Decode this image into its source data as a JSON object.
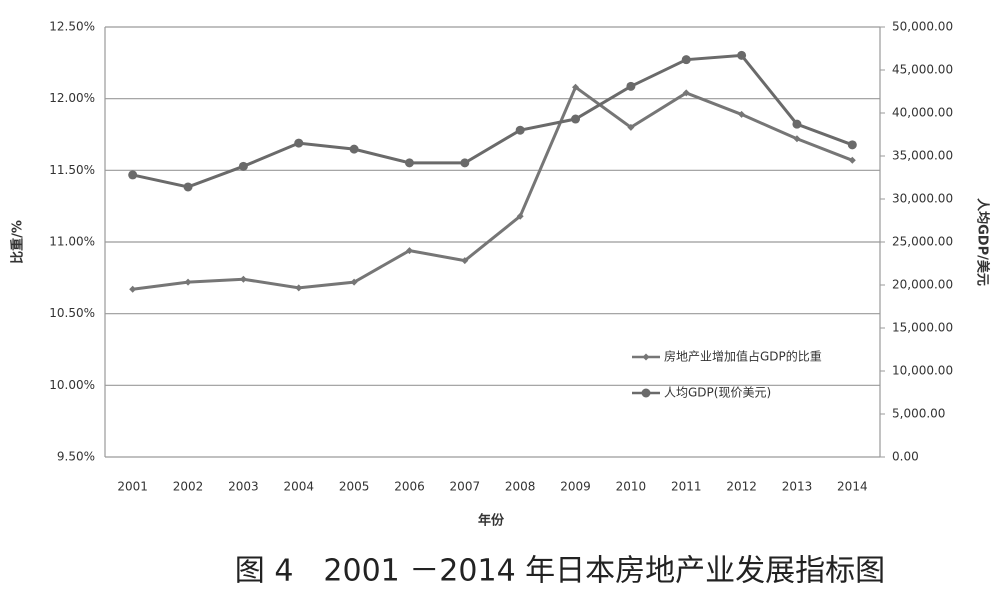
{
  "chart_data": {
    "type": "line",
    "caption": "图 4　2001 －2014 年日本房地产业发展指标图",
    "x_label": "年份",
    "y_label": "比重/%",
    "y2_label": "人均GDP/美元",
    "categories": [
      "2001",
      "2002",
      "2003",
      "2004",
      "2005",
      "2006",
      "2007",
      "2008",
      "2009",
      "2010",
      "2011",
      "2012",
      "2013",
      "2014"
    ],
    "series": [
      {
        "name": "房地产业增加值占GDP的比重",
        "color": "#767676",
        "marker": "diamond",
        "values": [
          10.67,
          10.72,
          10.74,
          10.68,
          10.72,
          10.94,
          10.87,
          11.18,
          12.08,
          11.8,
          12.04,
          11.89,
          11.72,
          11.57
        ]
      },
      {
        "name": "人均GDP(现价美元)",
        "color": "#6a6a6a",
        "marker": "circle",
        "axis": "y2",
        "values": [
          32800,
          31400,
          33800,
          36500,
          35800,
          34200,
          34200,
          38000,
          39300,
          43100,
          46200,
          46700,
          38700,
          36300
        ]
      }
    ],
    "ylim": [
      9.5,
      12.5
    ],
    "yticks": [
      {
        "value": 9.5,
        "label": "9.50%"
      },
      {
        "value": 10.0,
        "label": "10.00%"
      },
      {
        "value": 10.5,
        "label": "10.50%"
      },
      {
        "value": 11.0,
        "label": "11.00%"
      },
      {
        "value": 11.5,
        "label": "11.50%"
      },
      {
        "value": 12.0,
        "label": "12.00%"
      },
      {
        "value": 12.5,
        "label": "12.50%"
      }
    ],
    "y2lim": [
      0,
      50000
    ],
    "y2ticks": [
      {
        "value": 0,
        "label": "0.00"
      },
      {
        "value": 5000,
        "label": "5,000.00"
      },
      {
        "value": 10000,
        "label": "10,000.00"
      },
      {
        "value": 15000,
        "label": "15,000.00"
      },
      {
        "value": 20000,
        "label": "20,000.00"
      },
      {
        "value": 25000,
        "label": "25,000.00"
      },
      {
        "value": 30000,
        "label": "30,000.00"
      },
      {
        "value": 35000,
        "label": "35,000.00"
      },
      {
        "value": 40000,
        "label": "40,000.00"
      },
      {
        "value": 45000,
        "label": "45,000.00"
      },
      {
        "value": 50000,
        "label": "50,000.00"
      }
    ],
    "grid": true
  }
}
